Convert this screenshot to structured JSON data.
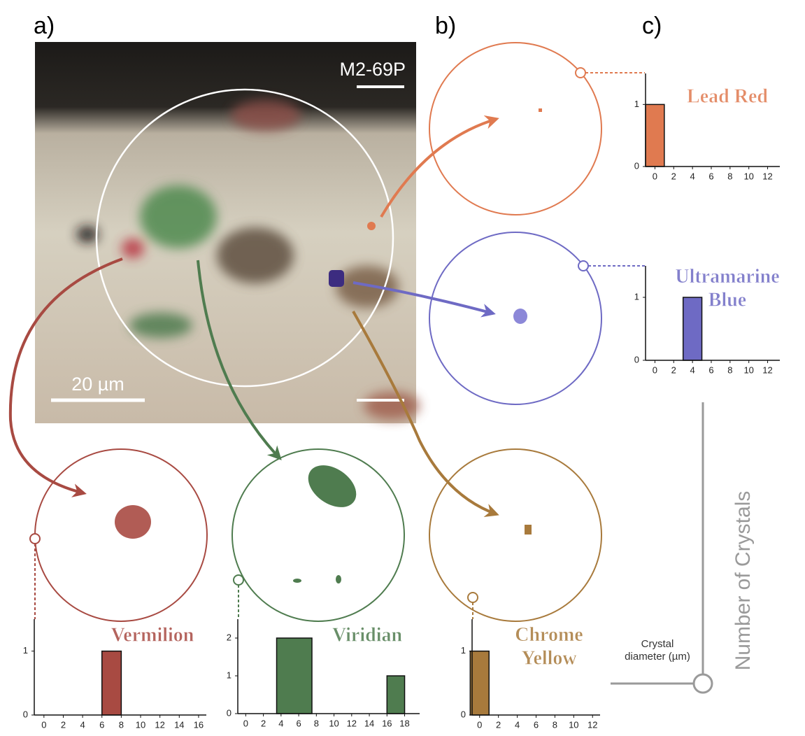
{
  "panel_labels": [
    "a)",
    "b)",
    "c)"
  ],
  "sample_label": "M2-69P",
  "scale_label": "20 µm",
  "axis_key": {
    "x_label": "Crystal\ndiameter (µm)",
    "y_label": "Number of Crystals"
  },
  "chart_data": [
    {
      "type": "histogram",
      "title": "Lead Red",
      "color": "#e07a50",
      "bins": [
        -1,
        1
      ],
      "values": [
        1
      ],
      "xlim": [
        -1,
        13.3
      ],
      "ylim": [
        0,
        1.5
      ],
      "xticks": [
        0,
        2,
        4,
        6,
        8,
        10,
        12
      ],
      "yticks": [
        0,
        1
      ]
    },
    {
      "type": "histogram",
      "title": "Ultramarine\nBlue",
      "color": "#6e6ac4",
      "bins": [
        3,
        5
      ],
      "values": [
        1
      ],
      "xlim": [
        -1,
        13.3
      ],
      "ylim": [
        0,
        1.5
      ],
      "xticks": [
        0,
        2,
        4,
        6,
        8,
        10,
        12
      ],
      "yticks": [
        0,
        1
      ]
    },
    {
      "type": "histogram",
      "title": "Vermilion",
      "color": "#a84a42",
      "bins": [
        6,
        8
      ],
      "values": [
        1
      ],
      "xlim": [
        -1,
        16.8
      ],
      "ylim": [
        0,
        1.5
      ],
      "xticks": [
        0,
        2,
        4,
        6,
        8,
        10,
        12,
        14,
        16
      ],
      "yticks": [
        0,
        1
      ]
    },
    {
      "type": "histogram",
      "title": "Viridian",
      "color": "#4f7c4f",
      "bins": [
        3.5,
        7.5,
        16,
        18
      ],
      "values": [
        2,
        0,
        1
      ],
      "xlim": [
        -0.9,
        19.7
      ],
      "ylim": [
        0,
        2.5
      ],
      "xticks": [
        0,
        2,
        4,
        6,
        8,
        10,
        12,
        14,
        16,
        18
      ],
      "yticks": [
        0,
        1,
        2
      ]
    },
    {
      "type": "histogram",
      "title": "Chrome\nYellow",
      "color": "#a87a3c",
      "bins": [
        -1,
        1
      ],
      "values": [
        1
      ],
      "xlim": [
        -0.8,
        12.8
      ],
      "ylim": [
        0,
        1.5
      ],
      "xticks": [
        0,
        2,
        4,
        6,
        8,
        10,
        12
      ],
      "yticks": [
        0,
        1
      ]
    }
  ]
}
